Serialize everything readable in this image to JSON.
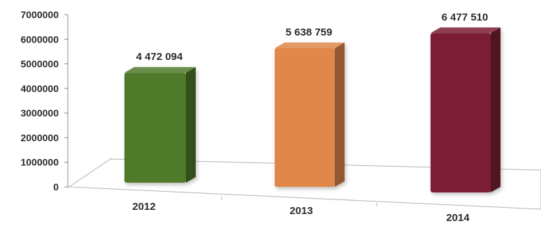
{
  "chart_data": {
    "type": "bar",
    "categories": [
      "2012",
      "2013",
      "2014"
    ],
    "values": [
      4472094,
      5638759,
      6477510
    ],
    "value_labels": [
      "4 472 094",
      "5 638 759",
      "6 477 510"
    ],
    "y_ticks": [
      "0",
      "1000000",
      "2000000",
      "3000000",
      "4000000",
      "5000000",
      "6000000",
      "7000000"
    ],
    "ylim": [
      0,
      7000000
    ],
    "grid": false,
    "legend": "none",
    "style": "3d-columns",
    "title": "",
    "xlabel": "",
    "ylabel": ""
  },
  "colors": {
    "bar_2012": "#4f7a2a",
    "bar_2013": "#e0874a",
    "bar_2014": "#7b1f34",
    "text": "#2b2b2b",
    "axis": "#8a8a8a"
  }
}
